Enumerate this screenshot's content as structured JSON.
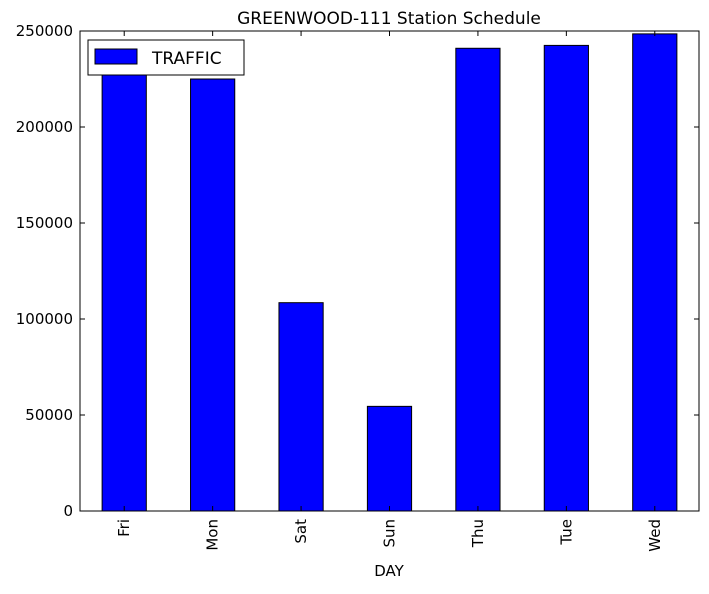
{
  "chart_data": {
    "type": "bar",
    "title": "GREENWOOD-111 Station Schedule",
    "xlabel": "DAY",
    "ylabel": "",
    "categories": [
      "Fri",
      "Mon",
      "Sat",
      "Sun",
      "Thu",
      "Tue",
      "Wed"
    ],
    "series": [
      {
        "name": "TRAFFIC",
        "values": [
          232000,
          225000,
          108500,
          54500,
          241000,
          242500,
          248500
        ],
        "color": "#0000ff"
      }
    ],
    "ylim": [
      0,
      250000
    ],
    "yticks": [
      0,
      50000,
      100000,
      150000,
      200000,
      250000
    ],
    "ytick_labels": [
      "0",
      "50000",
      "100000",
      "150000",
      "200000",
      "250000"
    ],
    "grid": false,
    "legend_position": "top-left"
  }
}
